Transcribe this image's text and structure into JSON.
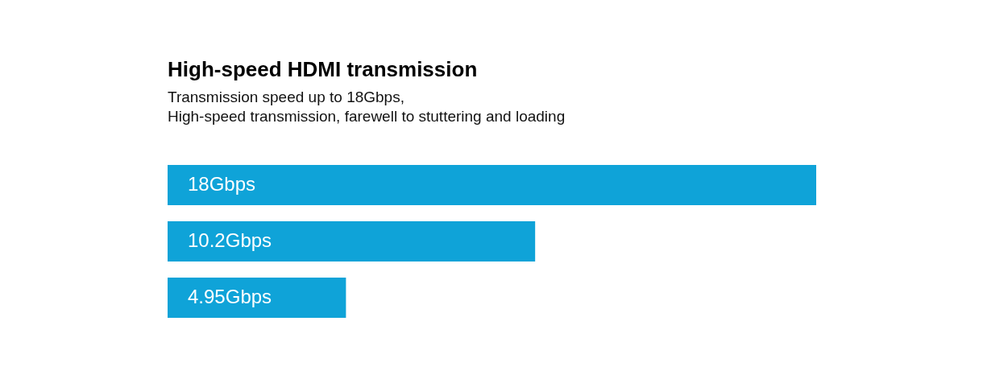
{
  "chart_data": {
    "type": "bar",
    "orientation": "horizontal",
    "title": "High-speed HDMI transmission",
    "subtitle": "Transmission speed up to 18Gbps,\nHigh-speed transmission, farewell to stuttering and loading",
    "categories": [
      null,
      null,
      null
    ],
    "values": [
      18,
      10.2,
      4.95
    ],
    "value_labels": [
      "18Gbps",
      "10.2Gbps",
      "4.95Gbps"
    ],
    "color": "#0fa3d8",
    "xlim": [
      0,
      18
    ],
    "tick_labels": false
  }
}
